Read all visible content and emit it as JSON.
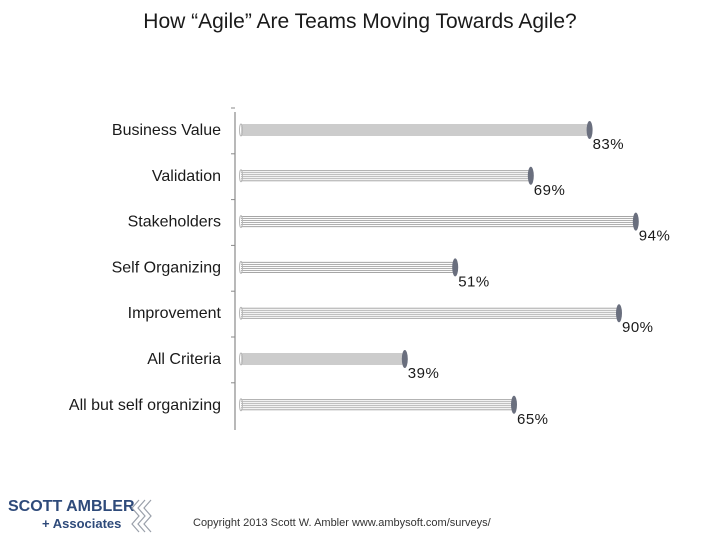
{
  "slide": {
    "title": "How “Agile” Are Teams Moving Towards Agile?",
    "copyright": "Copyright 2013 Scott W. Ambler www.ambysoft.com/surveys/"
  },
  "logo": {
    "line1": "SCOTT AMBLER",
    "line2": "+ Associates"
  },
  "chart_data": {
    "type": "bar",
    "orientation": "horizontal",
    "categories": [
      "Business Value",
      "Validation",
      "Stakeholders",
      "Self Organizing",
      "Improvement",
      "All Criteria",
      "All but self organizing"
    ],
    "values": [
      83,
      69,
      94,
      51,
      90,
      39,
      65
    ],
    "value_labels": [
      "83%",
      "69%",
      "94%",
      "51%",
      "90%",
      "39%",
      "65%"
    ],
    "xlim": [
      0,
      100
    ],
    "grid": false,
    "legend": "none",
    "colors": {
      "bar_line": "#9a9a9a",
      "bar_highlight": "#ffffff",
      "cap": "#6a6f7e",
      "axis": "#8a8a8a"
    }
  }
}
